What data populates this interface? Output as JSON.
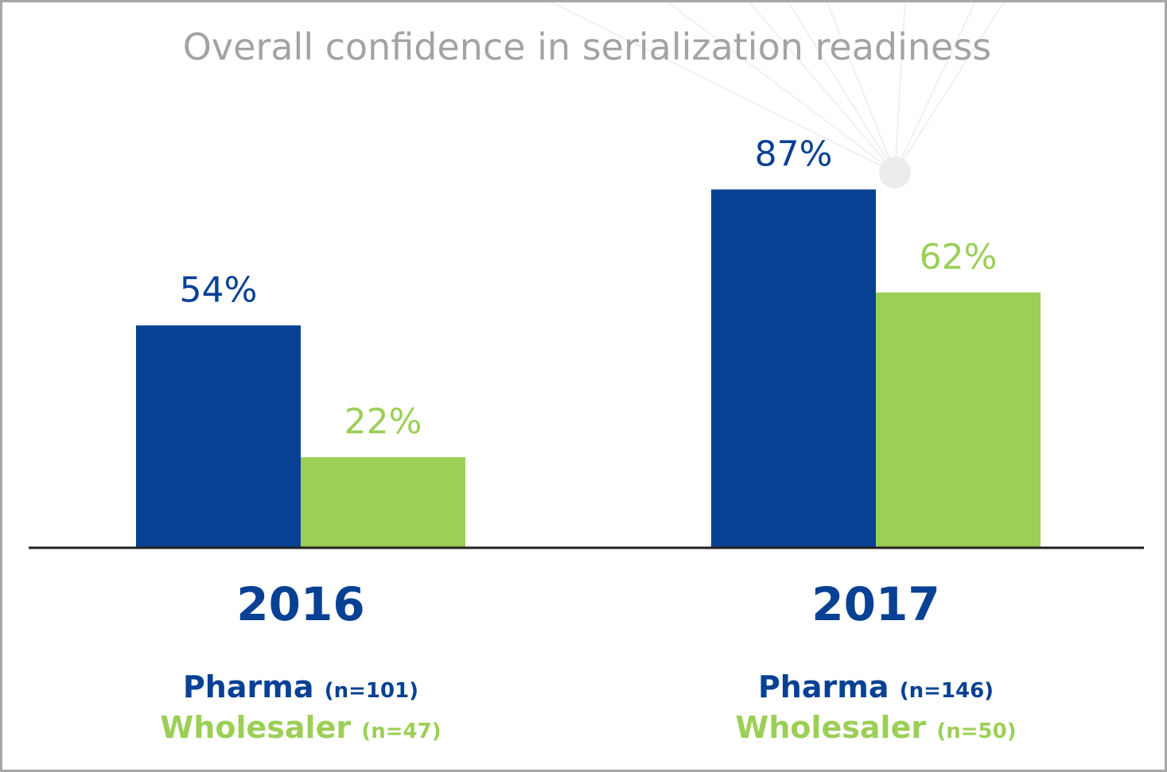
{
  "chart_data": {
    "type": "bar",
    "title": "Overall confidence in serialization readiness",
    "categories": [
      "2016",
      "2017"
    ],
    "series": [
      {
        "name": "Pharma",
        "values": [
          54,
          87
        ],
        "labels": [
          "54%",
          "87%"
        ],
        "color": "#084194"
      },
      {
        "name": "Wholesaler",
        "values": [
          22,
          62
        ],
        "labels": [
          "22%",
          "62%"
        ],
        "color": "#9ccf56"
      }
    ],
    "ylim": [
      0,
      100
    ],
    "grid": false,
    "legend": [
      [
        {
          "name": "Pharma",
          "n": "(n=101)",
          "color": "#084194"
        },
        {
          "name": "Wholesaler",
          "n": "(n=47)",
          "color": "#9ccf56"
        }
      ],
      [
        {
          "name": "Pharma",
          "n": "(n=146)",
          "color": "#084194"
        },
        {
          "name": "Wholesaler",
          "n": "(n=50)",
          "color": "#9ccf56"
        }
      ]
    ],
    "axis_color": "#222222",
    "title_color": "#a3a3a3"
  }
}
